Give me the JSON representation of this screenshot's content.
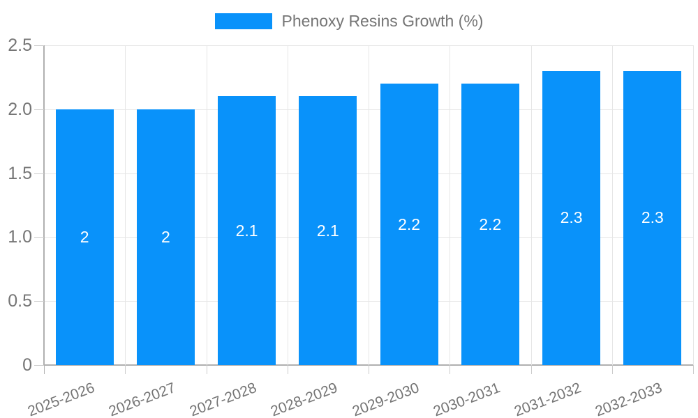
{
  "legend": {
    "label": "Phenoxy Resins Growth (%)"
  },
  "chart_data": {
    "type": "bar",
    "title": "Phenoxy Resins Growth (%)",
    "categories": [
      "2025-2026",
      "2026-2027",
      "2027-2028",
      "2028-2029",
      "2029-2030",
      "2030-2031",
      "2031-2032",
      "2032-2033"
    ],
    "values": [
      2,
      2,
      2.1,
      2.1,
      2.2,
      2.2,
      2.3,
      2.3
    ],
    "bar_labels": [
      "2",
      "2",
      "2.1",
      "2.1",
      "2.2",
      "2.2",
      "2.3",
      "2.3"
    ],
    "xlabel": "",
    "ylabel": "",
    "ylim": [
      0,
      2.5
    ],
    "y_tick_values": [
      0,
      0.5,
      1,
      1.5,
      2,
      2.5
    ],
    "y_tick_labels": [
      "0",
      "0.5",
      "1.0",
      "1.5",
      "2.0",
      "2.5"
    ],
    "grid": true,
    "legend_position": "top-center",
    "bar_label_position": "middle"
  },
  "colors": {
    "bar": "#0992fa",
    "grid": "#e6e6e6",
    "axis": "#b0b0b0",
    "tick_mark": "#cccccc",
    "tick_text": "#757575",
    "bar_label_text": "#ffffff",
    "legend_text": "#757575",
    "background": "#ffffff"
  }
}
